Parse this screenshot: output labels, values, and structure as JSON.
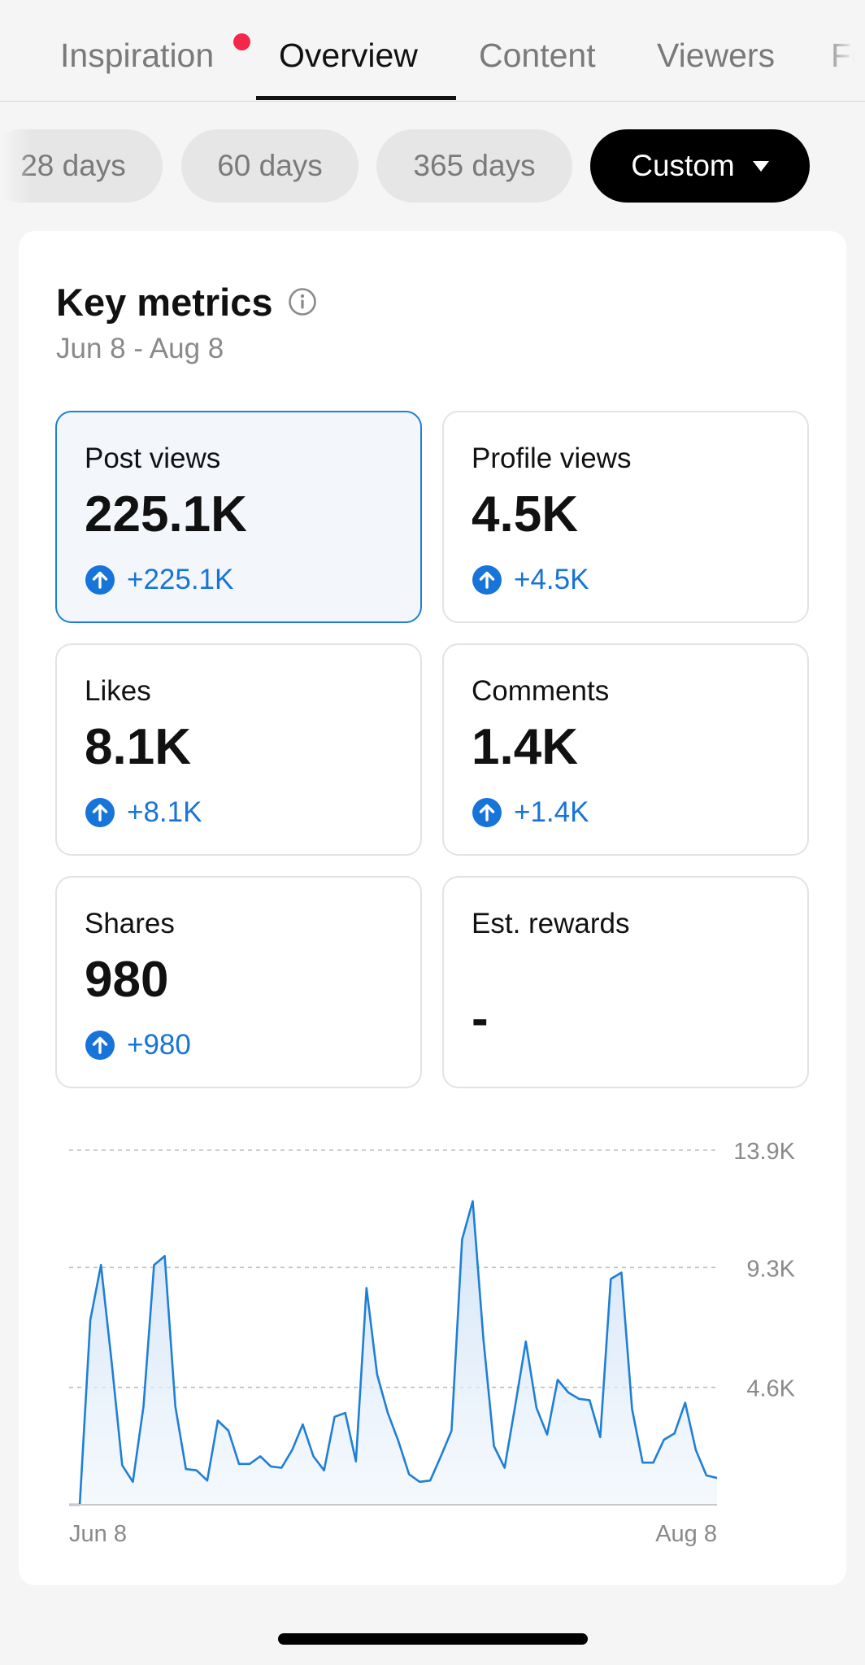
{
  "tabs": [
    {
      "label": "Inspiration",
      "has_notification": true
    },
    {
      "label": "Overview",
      "active": true
    },
    {
      "label": "Content"
    },
    {
      "label": "Viewers"
    },
    {
      "label": "Fo"
    }
  ],
  "periods": [
    {
      "label": "28 days"
    },
    {
      "label": "60 days"
    },
    {
      "label": "365 days"
    },
    {
      "label": "Custom",
      "active": true
    }
  ],
  "key_metrics": {
    "title": "Key metrics",
    "date_range": "Jun 8 - Aug 8",
    "cards": [
      {
        "label": "Post views",
        "value": "225.1K",
        "delta": "+225.1K",
        "selected": true
      },
      {
        "label": "Profile views",
        "value": "4.5K",
        "delta": "+4.5K"
      },
      {
        "label": "Likes",
        "value": "8.1K",
        "delta": "+8.1K"
      },
      {
        "label": "Comments",
        "value": "1.4K",
        "delta": "+1.4K"
      },
      {
        "label": "Shares",
        "value": "980",
        "delta": "+980"
      },
      {
        "label": "Est. rewards",
        "value": "-",
        "delta": ""
      }
    ]
  },
  "colors": {
    "accent_blue": "#1774d8",
    "selected_border": "#1f7fd6",
    "notification": "#f2274a"
  },
  "chart_data": {
    "type": "area",
    "series": [
      {
        "values": [
          0,
          0,
          7250,
          9400,
          5600,
          1550,
          900,
          3850,
          9400,
          9750,
          3850,
          1400,
          1350,
          950,
          3300,
          2900,
          1600,
          1600,
          1900,
          1500,
          1450,
          2150,
          3150,
          1900,
          1350,
          3450,
          3600,
          1700,
          8500,
          5100,
          3600,
          2500,
          1200,
          900,
          950,
          1900,
          2900,
          10400,
          11900,
          6500,
          2300,
          1450,
          3900,
          6400,
          3800,
          2750,
          4900,
          4400,
          4150,
          4100,
          2650,
          8850,
          9100,
          3750,
          1650,
          1650,
          2550,
          2800,
          4000,
          2150,
          1150,
          1050
        ]
      }
    ],
    "x_tick_labels": [
      "Jun 8",
      "Aug 8"
    ],
    "y_tick_labels": [
      "13.9K",
      "9.3K",
      "4.6K"
    ],
    "ylim": [
      0,
      13900
    ],
    "grid": true
  }
}
